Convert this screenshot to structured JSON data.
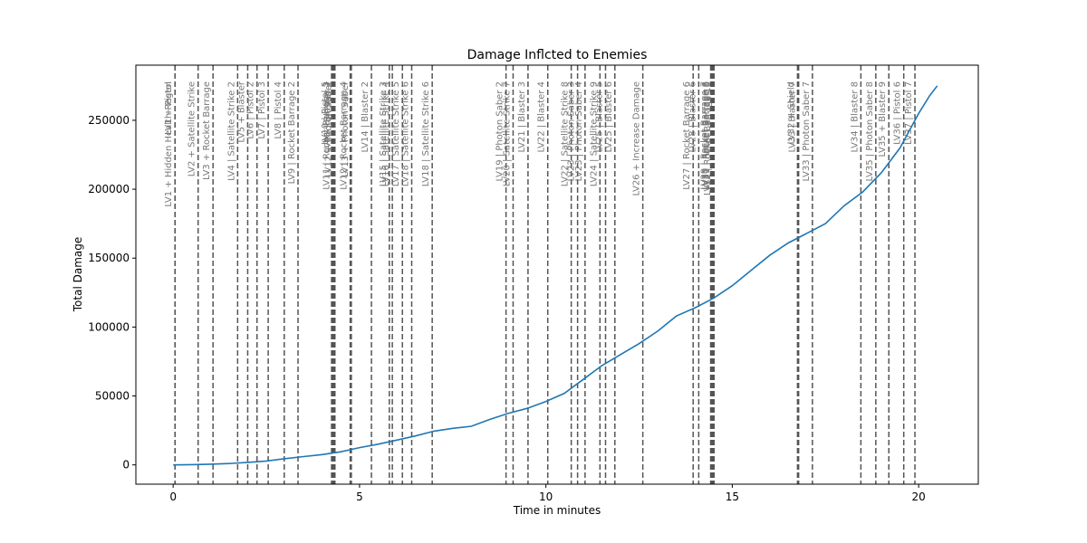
{
  "chart_data": {
    "type": "line",
    "title": "Damage Inflcted to Enemies",
    "xlabel": "Time in minutes",
    "ylabel": "Total Damage",
    "xlim": [
      -1.0,
      21.6
    ],
    "ylim": [
      -14000,
      290000
    ],
    "x_ticks": [
      0,
      5,
      10,
      15,
      20
    ],
    "y_ticks": [
      0,
      50000,
      100000,
      150000,
      200000,
      250000
    ],
    "grid": false,
    "legend": "none",
    "line_color": "#1f77b4",
    "vline_color": "#555555",
    "series": [
      {
        "x": [
          0,
          0.5,
          1.0,
          1.5,
          2.0,
          2.5,
          3.0,
          3.5,
          4.0,
          4.5,
          5.0,
          5.5,
          6.0,
          6.5,
          7.0,
          7.5,
          8.0,
          8.5,
          9.0,
          9.5,
          10.0,
          10.5,
          11.0,
          11.5,
          12.0,
          12.5,
          13.0,
          13.5,
          14.0,
          14.5,
          15.0,
          15.5,
          16.0,
          16.5,
          17.0,
          17.5,
          18.0,
          18.5,
          19.0,
          19.5,
          20.0,
          20.3,
          20.5
        ],
        "y": [
          0,
          200,
          500,
          1000,
          1800,
          2800,
          4500,
          6000,
          7500,
          9500,
          12500,
          15000,
          18000,
          21000,
          24500,
          26500,
          28000,
          33000,
          37500,
          41000,
          46000,
          52000,
          62000,
          72000,
          80000,
          88000,
          97000,
          108000,
          114000,
          121000,
          130000,
          141000,
          152000,
          161000,
          168000,
          175000,
          188000,
          198000,
          212000,
          230000,
          255000,
          268000,
          275000
        ]
      }
    ],
    "annotations": [
      {
        "x": 0.05,
        "label": "LV1 +  Hidden  Health Regen"
      },
      {
        "x": 0.05,
        "label": "LV1 +  Pistol"
      },
      {
        "x": 0.67,
        "label": "LV2 +  Satellite Strike"
      },
      {
        "x": 1.07,
        "label": "LV3 +  Rocket Barrage"
      },
      {
        "x": 1.73,
        "label": "LV4 |  Satellite Strike 2"
      },
      {
        "x": 2.0,
        "label": "LV5 +  Blaster"
      },
      {
        "x": 2.25,
        "label": "LV6 |  Pistol 2"
      },
      {
        "x": 2.55,
        "label": "LV7 |  Pistol 3"
      },
      {
        "x": 2.98,
        "label": "LV8 |  Pistol 4"
      },
      {
        "x": 3.35,
        "label": "LV9 |  Rocket Barrage 2"
      },
      {
        "x": 4.25,
        "label": "LV10 |  Pistol 5"
      },
      {
        "x": 4.28,
        "label": "LV11 |  Rocket Barrage 3"
      },
      {
        "x": 4.31,
        "label": "LV11 |  Blaster 2"
      },
      {
        "x": 4.34,
        "label": "LV12 +  Photon Saber"
      },
      {
        "x": 4.75,
        "label": "LV12 |  Rocket Barrage 4"
      },
      {
        "x": 4.78,
        "label": "LV13 +  Photon Saber"
      },
      {
        "x": 5.32,
        "label": "LV14 |  Blaster 2"
      },
      {
        "x": 5.8,
        "label": "LV15 |  Satellite Strike 3"
      },
      {
        "x": 5.88,
        "label": "LV16 |  Satellite Strike 4"
      },
      {
        "x": 6.15,
        "label": "LV17 |  Satellite Strike 5"
      },
      {
        "x": 6.4,
        "label": "LV18 |  Satellite Strike 6"
      },
      {
        "x": 6.95,
        "label": "LV18 |  Satellite Strike 6"
      },
      {
        "x": 8.93,
        "label": "LV19 |  Photon Saber 2"
      },
      {
        "x": 9.12,
        "label": "LV20 |  Satellite Strike 7"
      },
      {
        "x": 9.52,
        "label": "LV21 |  Blaster 3"
      },
      {
        "x": 10.05,
        "label": "LV22 |  Blaster 4"
      },
      {
        "x": 10.68,
        "label": "LV22 |  Satellite Strike 8"
      },
      {
        "x": 10.85,
        "label": "LV23 |  Photon Saber 3"
      },
      {
        "x": 11.05,
        "label": "LV23 |  Photon Saber 4"
      },
      {
        "x": 11.45,
        "label": "LV24 |  Satellite Strike 9"
      },
      {
        "x": 11.6,
        "label": "LV25 |  Blaster 5"
      },
      {
        "x": 11.85,
        "label": "LV25 |  Blaster 6"
      },
      {
        "x": 12.6,
        "label": "LV26 +  Increase Damage"
      },
      {
        "x": 13.95,
        "label": "LV27 |  Rocket Barrage 6"
      },
      {
        "x": 14.1,
        "label": "LV28 |  Blaster 6"
      },
      {
        "x": 14.42,
        "label": "LV29 |  Rocket Barrage 7"
      },
      {
        "x": 14.45,
        "label": "LV30 |  Rocket Barrage 8"
      },
      {
        "x": 14.48,
        "label": "LV31 |  Rocket Barrage 9"
      },
      {
        "x": 14.51,
        "label": "LV32 |  Rocket Barrage 10"
      },
      {
        "x": 16.75,
        "label": "LV32 +  Shield"
      },
      {
        "x": 16.78,
        "label": "LV33 |  Blaster 7"
      },
      {
        "x": 17.15,
        "label": "LV33 |  Photon Saber 7"
      },
      {
        "x": 18.45,
        "label": "LV34 |  Blaster 8"
      },
      {
        "x": 18.85,
        "label": "LV35 |  Photon Saber 8"
      },
      {
        "x": 19.2,
        "label": "LV35 +  Blaster 9"
      },
      {
        "x": 19.6,
        "label": "LV36 |  Pistol 6"
      },
      {
        "x": 19.9,
        "label": "LV37 |  Pistol 7"
      }
    ]
  }
}
